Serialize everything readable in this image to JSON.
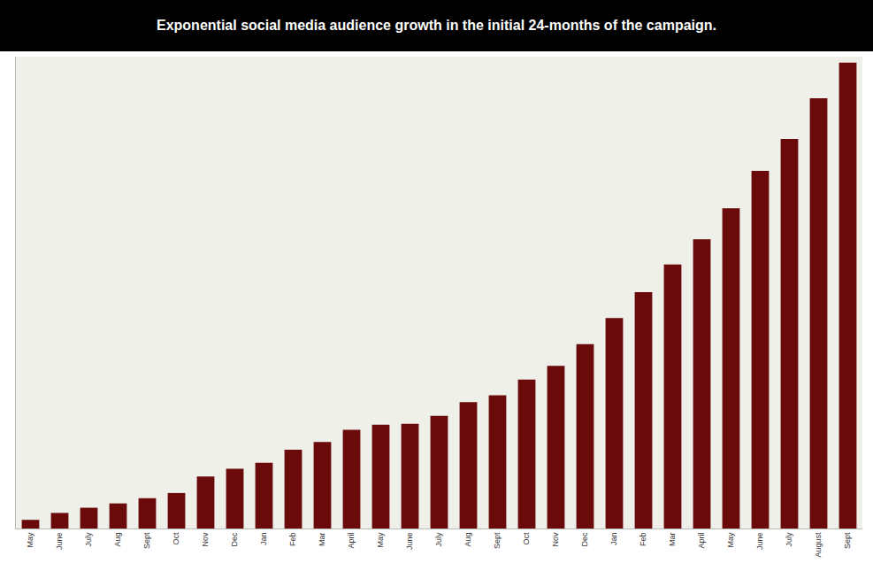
{
  "chart_data": {
    "type": "bar",
    "title": "Exponential social media audience growth in the initial 24-months of the campaign.",
    "categories": [
      "May",
      "June",
      "July",
      "Aug",
      "Sept",
      "Oct",
      "Nov",
      "Dec",
      "Jan",
      "Feb",
      "Mar",
      "April",
      "May",
      "June",
      "July",
      "Aug",
      "Sept",
      "Oct",
      "Nov",
      "Dec",
      "Jan",
      "Feb",
      "Mar",
      "April",
      "May",
      "June",
      "July",
      "August",
      "Sept"
    ],
    "values": [
      10,
      18,
      24,
      29,
      35,
      41,
      60,
      69,
      76,
      91,
      100,
      114,
      120,
      121,
      130,
      146,
      154,
      172,
      188,
      213,
      243,
      273,
      305,
      334,
      370,
      413,
      450,
      497,
      538
    ],
    "color": "#6b0a0a",
    "ylim": [
      0,
      545
    ],
    "grid": false,
    "tick_labels": "x"
  }
}
